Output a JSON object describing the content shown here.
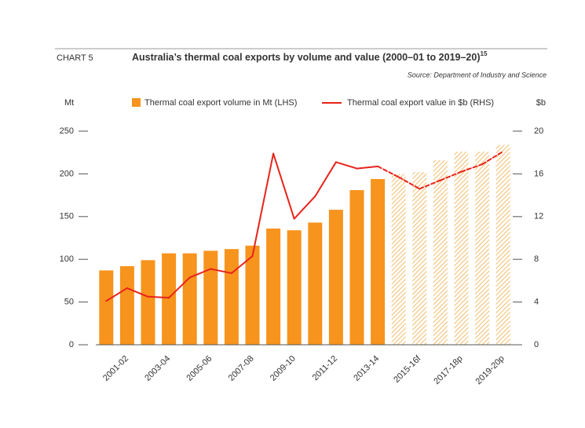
{
  "chart_data": {
    "type": "bar-line",
    "label": "CHART 5",
    "title": "Australia’s thermal coal exports by volume and value (2000–01 to 2019–20)",
    "title_note": "15",
    "source": "Source: Department of Industry and Science",
    "y_label": "Mt",
    "y2_label": "$b",
    "categories": [
      null,
      "2001-02",
      null,
      "2003-04",
      null,
      "2005-06",
      null,
      "2007-08",
      null,
      "2009-10",
      null,
      "2011-12",
      null,
      "2013-14",
      null,
      "2015-16f",
      null,
      "2017-18p",
      null,
      "2019-20p"
    ],
    "forecast_start": 14,
    "series": [
      {
        "name": "Thermal coal export volume in Mt (LHS)",
        "type": "bar",
        "color": "#f7941d",
        "values": [
          87,
          92,
          99,
          107,
          107,
          110,
          112,
          116,
          136,
          134,
          143,
          158,
          181,
          194,
          200,
          202,
          216,
          226,
          226,
          234
        ]
      },
      {
        "name": "Thermal coal export value in $b (RHS)",
        "type": "line",
        "axis": "y2",
        "color": "#e8231b",
        "values": [
          4.1,
          5.3,
          4.5,
          4.4,
          6.3,
          7.1,
          6.7,
          8.3,
          17.9,
          11.8,
          13.9,
          17.1,
          16.5,
          16.7,
          15.7,
          14.6,
          15.4,
          16.2,
          16.9,
          18.1
        ]
      }
    ],
    "ylim": [
      0,
      250
    ],
    "yticks": [
      0,
      50,
      100,
      150,
      200,
      250
    ],
    "y2lim": [
      0,
      20
    ],
    "y2ticks": [
      0,
      4,
      8,
      12,
      16,
      20
    ]
  }
}
